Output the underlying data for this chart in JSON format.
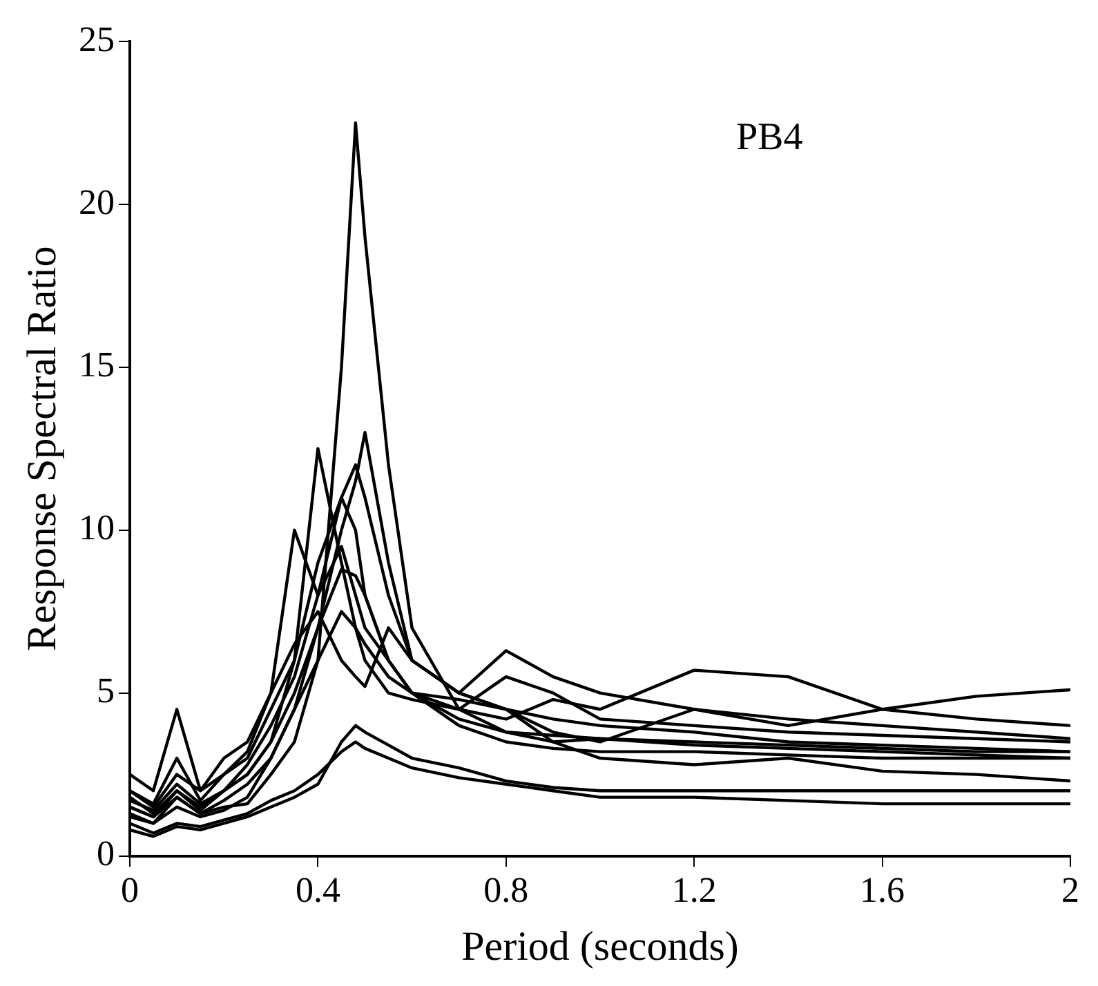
{
  "chart_data": {
    "type": "line",
    "xlabel": "Period (seconds)",
    "ylabel": "Response Spectral Ratio",
    "annotations": [
      "PB4"
    ],
    "x": [
      0,
      0.05,
      0.1,
      0.15,
      0.2,
      0.25,
      0.3,
      0.35,
      0.4,
      0.45,
      0.48,
      0.5,
      0.55,
      0.6,
      0.7,
      0.8,
      0.9,
      1.0,
      1.2,
      1.4,
      1.6,
      1.8,
      2.0
    ],
    "series": [
      {
        "color": "#000000",
        "values": [
          1.5,
          1.2,
          1.8,
          1.3,
          1.5,
          1.6,
          2.5,
          3.5,
          6,
          15,
          22.5,
          19,
          12,
          7,
          4.5,
          3.8,
          3.5,
          3.6,
          3.4,
          3.3,
          3.2,
          3.1,
          3.0
        ]
      },
      {
        "color": "#000000",
        "values": [
          1.2,
          1.0,
          1.5,
          1.2,
          1.4,
          1.8,
          3,
          4.5,
          7,
          10,
          11.5,
          13,
          9,
          6,
          5,
          4.5,
          4.2,
          4,
          3.8,
          3.5,
          3.4,
          3.3,
          3.2
        ]
      },
      {
        "color": "#000000",
        "values": [
          2,
          1.5,
          2.5,
          2,
          2.5,
          3,
          4.5,
          6,
          12.5,
          9,
          7,
          6,
          5,
          4.8,
          4.5,
          5.5,
          5,
          4.2,
          4,
          3.8,
          3.7,
          3.6,
          3.5
        ]
      },
      {
        "color": "#000000",
        "values": [
          2.5,
          2,
          4.5,
          2,
          3,
          3.5,
          5,
          10,
          8,
          9.5,
          8,
          7,
          6,
          5,
          4,
          3.5,
          3.3,
          3.2,
          3.2,
          3.1,
          3.0,
          3.0,
          3.0
        ]
      },
      {
        "color": "#000000",
        "values": [
          1.8,
          1.3,
          2,
          1.5,
          2,
          2.8,
          4,
          5.5,
          8,
          11,
          12,
          11,
          8,
          6,
          5,
          6.3,
          5.5,
          5,
          4.5,
          4.2,
          4,
          3.8,
          3.6
        ]
      },
      {
        "color": "#000000",
        "values": [
          1.7,
          1.4,
          2.2,
          1.6,
          2,
          2.5,
          3.5,
          5,
          7,
          8.8,
          8.6,
          8,
          6,
          5,
          4.2,
          3.8,
          3.7,
          3.6,
          3.5,
          3.4,
          3.3,
          3.2,
          3.2
        ]
      },
      {
        "color": "#000000",
        "values": [
          0.8,
          0.6,
          0.9,
          0.8,
          1,
          1.2,
          1.5,
          1.8,
          2.2,
          3.5,
          4,
          3.8,
          3.4,
          3,
          2.7,
          2.3,
          2.1,
          2,
          2,
          2,
          2,
          2,
          2
        ]
      },
      {
        "color": "#000000",
        "values": [
          1,
          0.7,
          1,
          0.9,
          1.1,
          1.3,
          1.7,
          2,
          2.5,
          3.2,
          3.5,
          3.3,
          3,
          2.7,
          2.4,
          2.2,
          2,
          1.8,
          1.8,
          1.7,
          1.6,
          1.6,
          1.6
        ]
      },
      {
        "color": "#000000",
        "values": [
          1.5,
          1.2,
          2,
          1.4,
          2,
          2.5,
          3.5,
          6,
          9,
          11,
          10,
          8,
          6,
          5,
          4.5,
          4.2,
          4.8,
          4.5,
          5.7,
          5.5,
          4.5,
          4.2,
          4.0
        ]
      },
      {
        "color": "#000000",
        "values": [
          1.3,
          1,
          1.8,
          1.3,
          1.7,
          2.2,
          3,
          4.5,
          6,
          7.5,
          7,
          6.5,
          5.5,
          5,
          4.8,
          4.5,
          3.5,
          3,
          2.8,
          3,
          2.6,
          2.5,
          2.3
        ]
      },
      {
        "color": "#000000",
        "values": [
          2,
          1.6,
          3,
          1.7,
          2.5,
          3.2,
          5,
          6.5,
          7.5,
          6,
          5.5,
          5.2,
          7,
          6,
          5,
          4.5,
          3.8,
          3.5,
          4.5,
          4,
          4.5,
          4.9,
          5.1
        ]
      }
    ],
    "xlim": [
      0,
      2
    ],
    "xticks": [
      0,
      0.4,
      0.8,
      1.2,
      1.6,
      2
    ],
    "ylim": [
      0,
      25
    ],
    "yticks": [
      0,
      5,
      10,
      15,
      20,
      25
    ],
    "grid": false,
    "legend": false,
    "marker": "none",
    "line_style": "solid"
  }
}
